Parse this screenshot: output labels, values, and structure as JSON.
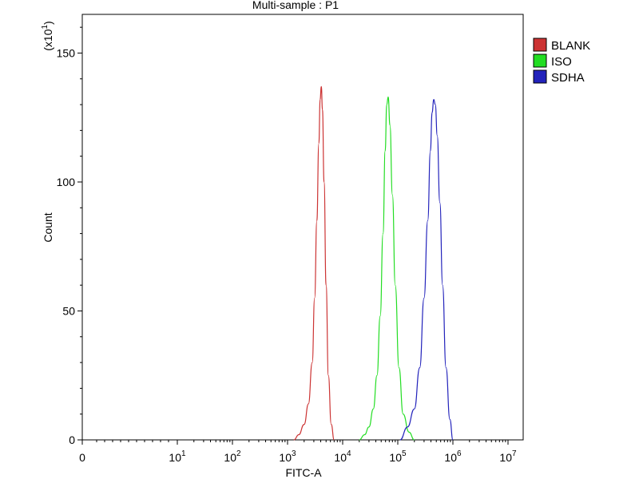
{
  "chart_data": {
    "type": "line",
    "title": "Multi-sample : P1",
    "xlabel": "FITC-A",
    "ylabel": "Count",
    "y_multiplier_label": "(x10",
    "y_multiplier_exp": "1",
    "y_multiplier_close": ")",
    "x_scale": "log",
    "xlim": [
      0,
      10000000
    ],
    "ylim": [
      0,
      165
    ],
    "x_ticks": [
      {
        "base": "0",
        "exp": ""
      },
      {
        "base": "10",
        "exp": "1"
      },
      {
        "base": "10",
        "exp": "2"
      },
      {
        "base": "10",
        "exp": "3"
      },
      {
        "base": "10",
        "exp": "4"
      },
      {
        "base": "10",
        "exp": "5"
      },
      {
        "base": "10",
        "exp": "6"
      },
      {
        "base": "10",
        "exp": "7"
      }
    ],
    "y_ticks": [
      "0",
      "50",
      "100",
      "150"
    ],
    "grid": false,
    "legend_position": "top-right",
    "series": [
      {
        "name": "BLANK",
        "color": "#cc3333",
        "x": [
          1300,
          1600,
          2000,
          2400,
          2800,
          3100,
          3400,
          3700,
          3900,
          4100,
          4300,
          4600,
          5000,
          5500,
          6200,
          7000
        ],
        "y": [
          0,
          2,
          6,
          14,
          30,
          55,
          85,
          115,
          132,
          137,
          128,
          100,
          60,
          25,
          6,
          0
        ]
      },
      {
        "name": "ISO",
        "color": "#22dd22",
        "x": [
          20000,
          25000,
          30000,
          36000,
          42000,
          48000,
          54000,
          59000,
          63000,
          67000,
          72000,
          80000,
          90000,
          105000,
          125000,
          160000,
          200000
        ],
        "y": [
          0,
          2,
          5,
          12,
          25,
          48,
          80,
          112,
          130,
          133,
          122,
          95,
          60,
          28,
          10,
          3,
          0
        ]
      },
      {
        "name": "SDHA",
        "color": "#2222bb",
        "x": [
          110000,
          150000,
          200000,
          250000,
          300000,
          350000,
          390000,
          420000,
          450000,
          480000,
          520000,
          580000,
          650000,
          750000,
          880000,
          1000000
        ],
        "y": [
          0,
          5,
          12,
          28,
          55,
          85,
          112,
          127,
          132,
          130,
          118,
          92,
          60,
          28,
          8,
          0
        ]
      }
    ]
  }
}
